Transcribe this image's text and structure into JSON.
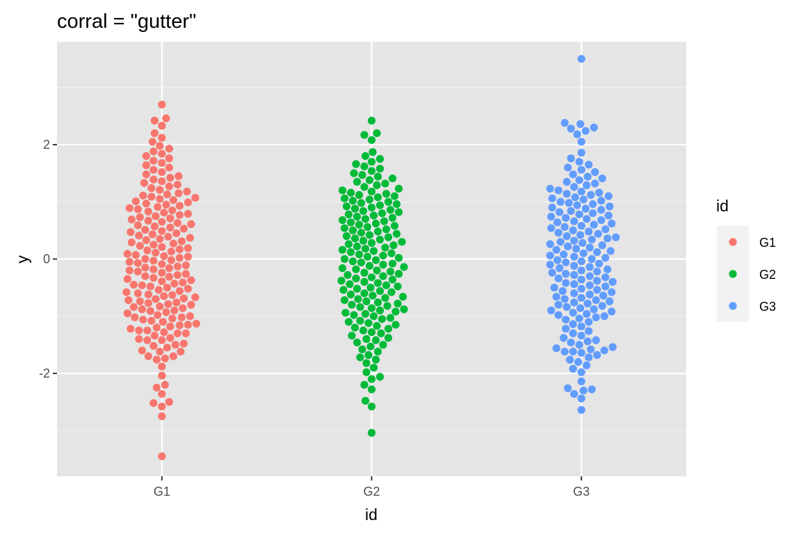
{
  "chart_data": {
    "type": "scatter",
    "subtype": "beeswarm",
    "title": "corral = \"gutter\"",
    "xlabel": "id",
    "ylabel": "y",
    "categories": [
      "G1",
      "G2",
      "G3"
    ],
    "ylim": [
      -3.8,
      3.8
    ],
    "y_ticks": [
      -2,
      0,
      2
    ],
    "y_tick_labels": [
      "-2",
      "0",
      "2"
    ],
    "grid": true,
    "background": "#e5e5e5",
    "legend": {
      "title": "id",
      "position": "right",
      "entries": [
        {
          "label": "G1",
          "color": "#f8766d"
        },
        {
          "label": "G2",
          "color": "#00ba38"
        },
        {
          "label": "G3",
          "color": "#619cff"
        }
      ]
    },
    "corral": "gutter",
    "corral_width": 0.9,
    "series": [
      {
        "name": "G1",
        "color": "#f8766d",
        "y": [
          -3.45,
          -2.75,
          -2.58,
          -2.52,
          -2.5,
          -2.36,
          -2.25,
          -2.2,
          -2.04,
          -1.88,
          -1.76,
          -1.74,
          -1.7,
          -1.7,
          -1.62,
          -1.62,
          -1.6,
          -1.55,
          -1.52,
          -1.5,
          -1.48,
          -1.42,
          -1.42,
          -1.4,
          -1.38,
          -1.34,
          -1.3,
          -1.3,
          -1.28,
          -1.25,
          -1.25,
          -1.22,
          -1.2,
          -1.18,
          -1.16,
          -1.15,
          -1.13,
          -1.1,
          -1.08,
          -1.06,
          -1.04,
          -1.02,
          -1.02,
          -1.0,
          -0.98,
          -0.95,
          -0.93,
          -0.91,
          -0.9,
          -0.88,
          -0.86,
          -0.84,
          -0.83,
          -0.8,
          -0.79,
          -0.77,
          -0.76,
          -0.74,
          -0.72,
          -0.7,
          -0.69,
          -0.67,
          -0.65,
          -0.63,
          -0.62,
          -0.6,
          -0.58,
          -0.56,
          -0.54,
          -0.52,
          -0.5,
          -0.48,
          -0.46,
          -0.45,
          -0.43,
          -0.41,
          -0.39,
          -0.37,
          -0.35,
          -0.33,
          -0.31,
          -0.3,
          -0.28,
          -0.26,
          -0.24,
          -0.22,
          -0.2,
          -0.18,
          -0.16,
          -0.15,
          -0.13,
          -0.11,
          -0.09,
          -0.07,
          -0.05,
          -0.03,
          -0.02,
          0.0,
          0.02,
          0.04,
          0.05,
          0.07,
          0.09,
          0.11,
          0.13,
          0.15,
          0.17,
          0.19,
          0.21,
          0.23,
          0.25,
          0.27,
          0.29,
          0.31,
          0.33,
          0.35,
          0.37,
          0.39,
          0.41,
          0.43,
          0.45,
          0.47,
          0.49,
          0.51,
          0.53,
          0.55,
          0.57,
          0.59,
          0.61,
          0.63,
          0.65,
          0.67,
          0.69,
          0.71,
          0.73,
          0.75,
          0.77,
          0.79,
          0.81,
          0.83,
          0.85,
          0.87,
          0.89,
          0.91,
          0.93,
          0.95,
          0.97,
          0.99,
          1.01,
          1.03,
          1.05,
          1.07,
          1.09,
          1.11,
          1.13,
          1.15,
          1.18,
          1.21,
          1.24,
          1.27,
          1.3,
          1.33,
          1.36,
          1.39,
          1.42,
          1.45,
          1.48,
          1.52,
          1.56,
          1.6,
          1.64,
          1.68,
          1.72,
          1.76,
          1.8,
          1.84,
          1.88,
          1.93,
          1.98,
          2.05,
          2.12,
          2.2,
          2.33,
          2.42,
          2.46,
          2.7
        ]
      },
      {
        "name": "G2",
        "color": "#00ba38",
        "y": [
          -3.04,
          -2.58,
          -2.48,
          -2.28,
          -2.2,
          -2.1,
          -2.06,
          -1.98,
          -1.9,
          -1.82,
          -1.76,
          -1.72,
          -1.68,
          -1.62,
          -1.58,
          -1.53,
          -1.5,
          -1.46,
          -1.42,
          -1.4,
          -1.38,
          -1.34,
          -1.3,
          -1.28,
          -1.25,
          -1.22,
          -1.2,
          -1.17,
          -1.15,
          -1.12,
          -1.1,
          -1.08,
          -1.05,
          -1.03,
          -1.0,
          -0.98,
          -0.96,
          -0.94,
          -0.92,
          -0.9,
          -0.88,
          -0.86,
          -0.84,
          -0.82,
          -0.8,
          -0.78,
          -0.76,
          -0.74,
          -0.72,
          -0.7,
          -0.68,
          -0.66,
          -0.64,
          -0.62,
          -0.6,
          -0.58,
          -0.56,
          -0.54,
          -0.52,
          -0.5,
          -0.48,
          -0.46,
          -0.44,
          -0.42,
          -0.4,
          -0.38,
          -0.36,
          -0.34,
          -0.32,
          -0.3,
          -0.28,
          -0.26,
          -0.24,
          -0.22,
          -0.2,
          -0.18,
          -0.16,
          -0.14,
          -0.12,
          -0.1,
          -0.08,
          -0.06,
          -0.04,
          -0.02,
          0.0,
          0.02,
          0.04,
          0.06,
          0.08,
          0.1,
          0.12,
          0.14,
          0.16,
          0.18,
          0.2,
          0.22,
          0.24,
          0.26,
          0.28,
          0.3,
          0.32,
          0.34,
          0.36,
          0.38,
          0.4,
          0.42,
          0.44,
          0.46,
          0.48,
          0.5,
          0.52,
          0.54,
          0.56,
          0.58,
          0.6,
          0.62,
          0.64,
          0.66,
          0.68,
          0.7,
          0.72,
          0.74,
          0.76,
          0.78,
          0.8,
          0.82,
          0.84,
          0.86,
          0.88,
          0.9,
          0.92,
          0.94,
          0.96,
          0.98,
          1.0,
          1.02,
          1.04,
          1.06,
          1.08,
          1.1,
          1.12,
          1.14,
          1.16,
          1.18,
          1.2,
          1.23,
          1.26,
          1.29,
          1.32,
          1.35,
          1.38,
          1.41,
          1.44,
          1.47,
          1.5,
          1.54,
          1.58,
          1.62,
          1.66,
          1.7,
          1.75,
          1.8,
          1.87,
          2.08,
          2.17,
          2.2,
          2.42
        ]
      },
      {
        "name": "G3",
        "color": "#619cff",
        "y": [
          -2.64,
          -2.44,
          -2.36,
          -2.3,
          -2.28,
          -2.26,
          -2.14,
          -1.98,
          -1.92,
          -1.86,
          -1.8,
          -1.76,
          -1.72,
          -1.68,
          -1.64,
          -1.62,
          -1.62,
          -1.6,
          -1.58,
          -1.56,
          -1.54,
          -1.5,
          -1.46,
          -1.44,
          -1.42,
          -1.38,
          -1.34,
          -1.3,
          -1.26,
          -1.22,
          -1.18,
          -1.14,
          -1.1,
          -1.06,
          -1.04,
          -1.02,
          -1.0,
          -0.98,
          -0.96,
          -0.94,
          -0.92,
          -0.9,
          -0.88,
          -0.86,
          -0.84,
          -0.82,
          -0.8,
          -0.78,
          -0.76,
          -0.74,
          -0.72,
          -0.7,
          -0.68,
          -0.66,
          -0.64,
          -0.62,
          -0.6,
          -0.58,
          -0.56,
          -0.54,
          -0.52,
          -0.5,
          -0.48,
          -0.46,
          -0.44,
          -0.42,
          -0.4,
          -0.38,
          -0.36,
          -0.34,
          -0.32,
          -0.3,
          -0.28,
          -0.26,
          -0.24,
          -0.22,
          -0.2,
          -0.18,
          -0.16,
          -0.14,
          -0.12,
          -0.1,
          -0.08,
          -0.06,
          -0.04,
          -0.02,
          0.0,
          0.02,
          0.04,
          0.06,
          0.08,
          0.1,
          0.12,
          0.14,
          0.16,
          0.18,
          0.2,
          0.22,
          0.24,
          0.26,
          0.28,
          0.3,
          0.32,
          0.34,
          0.36,
          0.38,
          0.4,
          0.42,
          0.44,
          0.46,
          0.48,
          0.5,
          0.52,
          0.54,
          0.56,
          0.58,
          0.6,
          0.62,
          0.64,
          0.66,
          0.68,
          0.7,
          0.72,
          0.74,
          0.76,
          0.78,
          0.8,
          0.82,
          0.84,
          0.86,
          0.88,
          0.9,
          0.92,
          0.94,
          0.96,
          0.98,
          1.0,
          1.02,
          1.04,
          1.06,
          1.08,
          1.1,
          1.12,
          1.14,
          1.16,
          1.18,
          1.2,
          1.23,
          1.26,
          1.29,
          1.32,
          1.35,
          1.38,
          1.41,
          1.44,
          1.48,
          1.52,
          1.56,
          1.6,
          1.65,
          1.7,
          1.76,
          1.86,
          2.05,
          2.18,
          2.24,
          2.28,
          2.3,
          2.36,
          2.38,
          3.5
        ]
      }
    ]
  }
}
